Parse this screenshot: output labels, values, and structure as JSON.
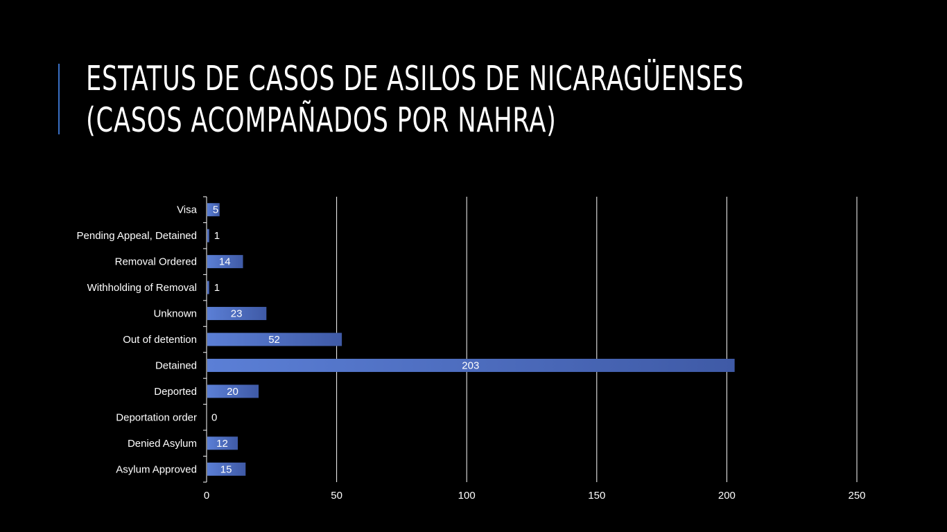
{
  "title": {
    "line1": "ESTATUS DE CASOS DE ASILOS DE NICARAGÜENSES",
    "line2": "(CASOS ACOMPAÑADOS POR NAHRA)"
  },
  "colors": {
    "background": "#000000",
    "accent": "#3a6fc4",
    "bar_light": "#5b7fd6",
    "bar_dark": "#3f5aa6",
    "text": "#ffffff",
    "grid": "#ffffff"
  },
  "chart_data": {
    "type": "bar",
    "orientation": "horizontal",
    "categories": [
      "Visa",
      "Pending Appeal, Detained",
      "Removal Ordered",
      "Withholding of Removal",
      "Unknown",
      "Out of detention",
      "Detained",
      "Deported",
      "Deportation order",
      "Denied Asylum",
      "Asylum Approved"
    ],
    "values": [
      5,
      1,
      14,
      1,
      23,
      52,
      203,
      20,
      0,
      12,
      15
    ],
    "xlim": [
      0,
      250
    ],
    "xticks": [
      0,
      50,
      100,
      150,
      200,
      250
    ],
    "grid": true,
    "legend": false,
    "title": "",
    "xlabel": "",
    "ylabel": ""
  }
}
